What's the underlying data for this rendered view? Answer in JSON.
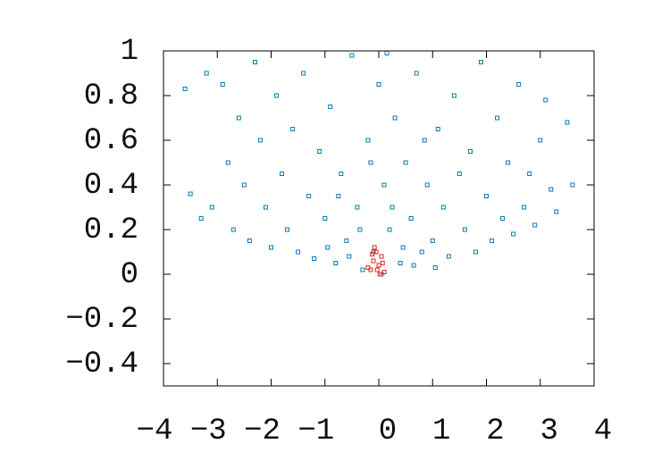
{
  "chart_data": {
    "type": "scatter",
    "xlim": [
      -4,
      4
    ],
    "xticks": [
      {
        "value": -4,
        "label": "−4"
      },
      {
        "value": -3,
        "label": "−3"
      },
      {
        "value": -2,
        "label": "−2"
      },
      {
        "value": -1,
        "label": "−1"
      },
      0,
      1,
      2,
      3,
      4
    ],
    "ylim": [
      -0.5,
      1
    ],
    "yticks": [
      {
        "value": -0.4,
        "label": "−0.4"
      },
      {
        "value": -0.2,
        "label": "−0.2"
      },
      0,
      0.2,
      0.4,
      0.6,
      0.8,
      1
    ],
    "grid": false,
    "series": [
      {
        "color": "#0a7ab0",
        "marker": "square",
        "x": [
          -3.5,
          -3.3,
          -3.1,
          -2.9,
          -2.8,
          -2.7,
          -2.6,
          -2.5,
          -2.4,
          -2.3,
          -2.2,
          -2.1,
          -2.0,
          -1.9,
          -1.8,
          -1.7,
          -1.6,
          -1.5,
          -1.4,
          -1.3,
          -1.2,
          -1.1,
          -1.0,
          -0.9,
          -0.8,
          -0.7,
          -0.6,
          -0.5,
          -0.4,
          -0.3,
          -0.2,
          -0.1,
          0,
          0.05,
          0.1,
          0.2,
          0.3,
          0.4,
          0.5,
          0.6,
          0.7,
          0.8,
          0.9,
          1.0,
          1.1,
          1.2,
          1.3,
          1.4,
          1.5,
          1.6,
          1.7,
          1.8,
          1.9,
          2.0,
          2.1,
          2.2,
          2.3,
          2.4,
          2.5,
          2.6,
          2.7,
          2.8,
          2.9,
          3.0,
          3.2,
          3.3,
          3.5,
          3.6,
          -3.6,
          -3.2,
          3.1,
          0.15,
          -0.15,
          0.25,
          -0.35,
          0.45,
          -0.55,
          0.65,
          -0.75,
          0.85,
          -0.95,
          1.05
        ],
        "y": [
          0.36,
          0.25,
          0.3,
          0.85,
          0.5,
          0.2,
          0.7,
          0.4,
          0.15,
          0.95,
          0.6,
          0.3,
          0.12,
          0.8,
          0.45,
          0.2,
          0.65,
          0.1,
          0.9,
          0.35,
          0.07,
          0.55,
          0.25,
          0.75,
          0.05,
          0.45,
          0.15,
          0.98,
          0.3,
          0.02,
          0.6,
          0.1,
          0.85,
          0.0,
          0.4,
          0.2,
          0.7,
          0.05,
          0.5,
          0.25,
          0.9,
          0.1,
          0.4,
          0.15,
          0.65,
          0.3,
          0.08,
          0.8,
          0.45,
          0.2,
          0.55,
          0.1,
          0.95,
          0.35,
          0.15,
          0.7,
          0.25,
          0.5,
          0.18,
          0.85,
          0.3,
          0.45,
          0.22,
          0.6,
          0.38,
          0.28,
          0.68,
          0.4,
          0.83,
          0.9,
          0.78,
          0.99,
          0.5,
          0.3,
          0.2,
          0.12,
          0.08,
          0.04,
          0.35,
          0.6,
          0.12,
          0.03
        ]
      },
      {
        "color": "#e8251c",
        "marker": "square",
        "x": [
          -0.15,
          -0.1,
          -0.05,
          0,
          0.05,
          -0.2,
          0.1,
          -0.08,
          0.02,
          -0.12,
          0.07,
          -0.03
        ],
        "y": [
          0.02,
          0.06,
          0.1,
          0.04,
          0.08,
          0.03,
          0.01,
          0.12,
          0.0,
          0.09,
          0.05,
          0.02
        ]
      }
    ]
  }
}
